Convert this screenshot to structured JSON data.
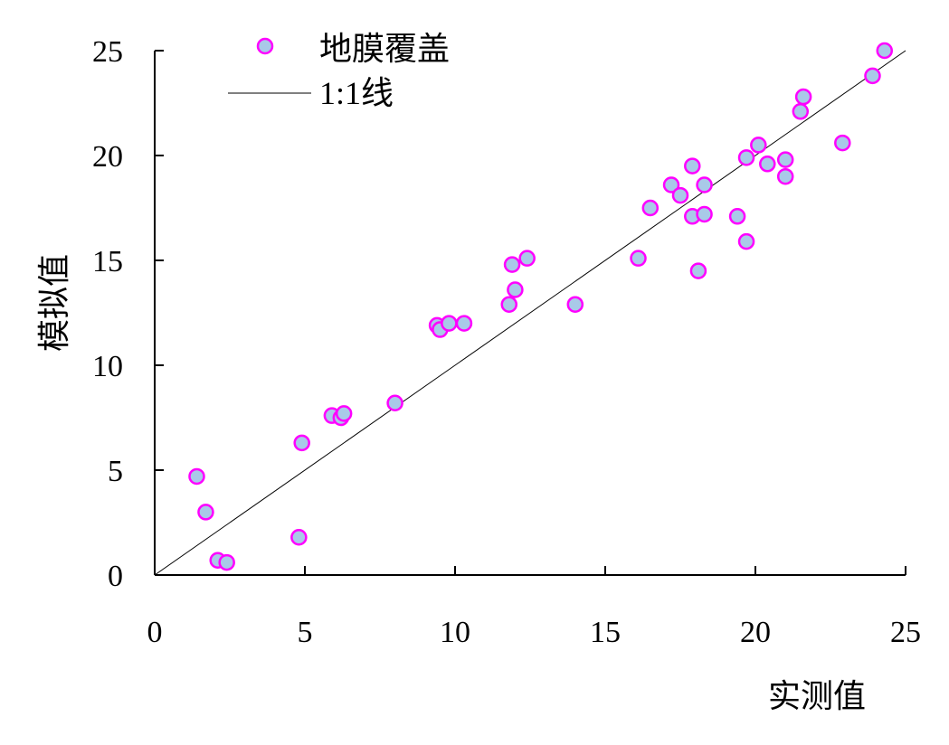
{
  "chart_data": {
    "type": "scatter",
    "title": "",
    "xlabel": "实测值",
    "ylabel": "模拟值",
    "xlim": [
      0,
      25
    ],
    "ylim": [
      0,
      25
    ],
    "x_ticks": [
      0,
      5,
      10,
      15,
      20,
      25
    ],
    "y_ticks": [
      0,
      5,
      10,
      15,
      20,
      25
    ],
    "x_tick_labels": [
      "0",
      "5",
      "10",
      "15",
      "20",
      "25"
    ],
    "y_tick_labels": [
      "0",
      "5",
      "10",
      "15",
      "20",
      "25"
    ],
    "grid": false,
    "legend_position": "top-left",
    "series": [
      {
        "name": "地膜覆盖",
        "marker": "circle",
        "fill_color": "#a9c9e8",
        "edge_color": "#ff00ff",
        "points": [
          [
            1.4,
            4.7
          ],
          [
            1.7,
            3.0
          ],
          [
            2.1,
            0.7
          ],
          [
            2.4,
            0.6
          ],
          [
            4.8,
            1.8
          ],
          [
            4.9,
            6.3
          ],
          [
            5.9,
            7.6
          ],
          [
            6.2,
            7.5
          ],
          [
            6.3,
            7.7
          ],
          [
            8.0,
            8.2
          ],
          [
            9.4,
            11.9
          ],
          [
            9.5,
            11.7
          ],
          [
            9.8,
            12.0
          ],
          [
            10.3,
            12.0
          ],
          [
            11.8,
            12.9
          ],
          [
            11.9,
            14.8
          ],
          [
            12.0,
            13.6
          ],
          [
            12.4,
            15.1
          ],
          [
            14.0,
            12.9
          ],
          [
            16.1,
            15.1
          ],
          [
            16.5,
            17.5
          ],
          [
            17.2,
            18.6
          ],
          [
            17.5,
            18.1
          ],
          [
            17.9,
            19.5
          ],
          [
            17.9,
            17.1
          ],
          [
            18.1,
            14.5
          ],
          [
            18.3,
            18.6
          ],
          [
            18.3,
            17.2
          ],
          [
            19.4,
            17.1
          ],
          [
            19.7,
            19.9
          ],
          [
            19.7,
            15.9
          ],
          [
            20.1,
            20.5
          ],
          [
            20.4,
            19.6
          ],
          [
            21.0,
            19.8
          ],
          [
            21.0,
            19.0
          ],
          [
            21.5,
            22.1
          ],
          [
            21.6,
            22.8
          ],
          [
            22.9,
            20.6
          ],
          [
            23.9,
            23.8
          ],
          [
            24.3,
            25.0
          ]
        ]
      },
      {
        "name": "1:1线",
        "type": "line",
        "color": "#000000",
        "points": [
          [
            0,
            0
          ],
          [
            25,
            25
          ]
        ]
      }
    ]
  }
}
